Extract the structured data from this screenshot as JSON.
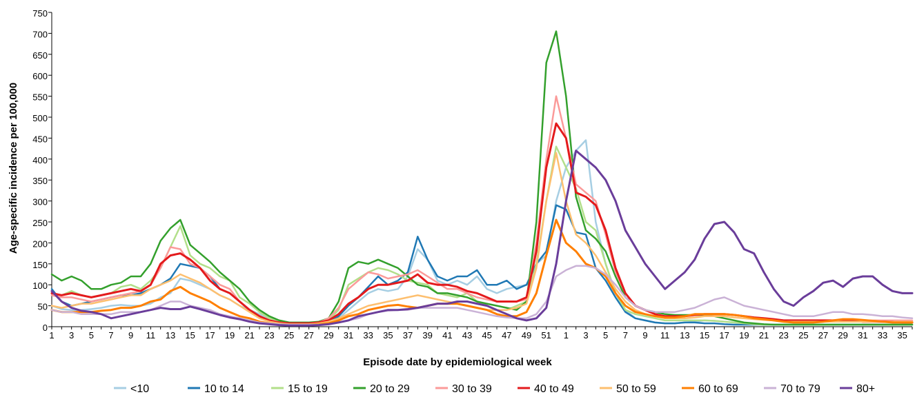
{
  "chart_data": {
    "type": "line",
    "title": "",
    "xlabel": "Episode date by epidemiological week",
    "ylabel": "Age-specific incidence per 100,000",
    "ylim": [
      0,
      750
    ],
    "yticks": [
      0,
      50,
      100,
      150,
      200,
      250,
      300,
      350,
      400,
      450,
      500,
      550,
      600,
      650,
      700,
      750
    ],
    "grid": false,
    "legend": "bottom",
    "x": [
      "1",
      "2",
      "3",
      "4",
      "5",
      "6",
      "7",
      "8",
      "9",
      "10",
      "11",
      "12",
      "13",
      "14",
      "15",
      "16",
      "17",
      "18",
      "19",
      "20",
      "21",
      "22",
      "23",
      "24",
      "25",
      "26",
      "27",
      "28",
      "29",
      "30",
      "31",
      "32",
      "33",
      "34",
      "35",
      "36",
      "37",
      "38",
      "39",
      "40",
      "41",
      "42",
      "43",
      "44",
      "45",
      "46",
      "47",
      "48",
      "49",
      "50",
      "51",
      "52",
      "1",
      "2",
      "3",
      "4",
      "5",
      "6",
      "7",
      "8",
      "9",
      "10",
      "11",
      "12",
      "13",
      "14",
      "15",
      "16",
      "17",
      "18",
      "19",
      "20",
      "21",
      "22",
      "23",
      "24",
      "25",
      "26",
      "27",
      "28",
      "29",
      "30",
      "31",
      "32",
      "33",
      "34",
      "35",
      "36"
    ],
    "xticks": [
      "1",
      "3",
      "5",
      "7",
      "9",
      "11",
      "13",
      "15",
      "17",
      "19",
      "21",
      "23",
      "25",
      "27",
      "29",
      "31",
      "33",
      "35",
      "37",
      "39",
      "41",
      "43",
      "45",
      "47",
      "49",
      "51",
      "1",
      "3",
      "5",
      "7",
      "9",
      "11",
      "13",
      "15",
      "17",
      "19",
      "21",
      "23",
      "25",
      "27",
      "29",
      "31",
      "33",
      "35"
    ],
    "series": [
      {
        "name": "<10",
        "color": "#a6cee3",
        "width": 2.5,
        "values": [
          50,
          42,
          40,
          40,
          42,
          45,
          50,
          52,
          50,
          50,
          55,
          70,
          80,
          115,
          110,
          100,
          90,
          75,
          65,
          50,
          40,
          30,
          20,
          15,
          10,
          8,
          8,
          8,
          10,
          20,
          40,
          60,
          80,
          90,
          85,
          90,
          120,
          185,
          160,
          110,
          100,
          110,
          100,
          120,
          90,
          80,
          90,
          95,
          100,
          150,
          170,
          300,
          380,
          420,
          445,
          250,
          150,
          80,
          40,
          20,
          15,
          10,
          8,
          8,
          10,
          12,
          15,
          14,
          12,
          10,
          8,
          6,
          5,
          5,
          5,
          5,
          5,
          5,
          5,
          5,
          5,
          5,
          5,
          5,
          5,
          5,
          5,
          5
        ]
      },
      {
        "name": "10 to 14",
        "color": "#1f78b4",
        "width": 2.5,
        "values": [
          90,
          60,
          50,
          55,
          60,
          65,
          70,
          75,
          75,
          80,
          90,
          100,
          115,
          150,
          145,
          140,
          120,
          90,
          80,
          60,
          40,
          25,
          15,
          10,
          8,
          8,
          8,
          8,
          10,
          25,
          50,
          70,
          95,
          120,
          100,
          110,
          130,
          215,
          160,
          120,
          110,
          120,
          120,
          135,
          100,
          100,
          110,
          90,
          100,
          150,
          180,
          290,
          280,
          225,
          220,
          140,
          110,
          70,
          35,
          20,
          15,
          10,
          8,
          8,
          10,
          10,
          8,
          8,
          6,
          5,
          5,
          5,
          5,
          5,
          5,
          5,
          5,
          5,
          5,
          5,
          5,
          5,
          5,
          5,
          5,
          5,
          5,
          5
        ]
      },
      {
        "name": "15 to 19",
        "color": "#b2df8a",
        "width": 2.5,
        "values": [
          80,
          75,
          85,
          75,
          70,
          75,
          80,
          95,
          100,
          90,
          110,
          140,
          190,
          240,
          170,
          150,
          140,
          120,
          110,
          70,
          55,
          35,
          20,
          15,
          10,
          8,
          8,
          8,
          15,
          40,
          100,
          115,
          130,
          140,
          135,
          125,
          110,
          105,
          100,
          80,
          75,
          70,
          80,
          60,
          50,
          40,
          40,
          50,
          60,
          150,
          300,
          430,
          380,
          330,
          250,
          230,
          150,
          80,
          40,
          30,
          25,
          20,
          15,
          15,
          15,
          15,
          15,
          14,
          12,
          10,
          8,
          6,
          5,
          5,
          5,
          5,
          5,
          5,
          5,
          5,
          5,
          5,
          5,
          5,
          5,
          5,
          5,
          5
        ]
      },
      {
        "name": "20 to 29",
        "color": "#33a02c",
        "width": 2.5,
        "values": [
          125,
          110,
          120,
          110,
          90,
          90,
          100,
          105,
          120,
          120,
          150,
          205,
          235,
          255,
          195,
          175,
          155,
          130,
          110,
          90,
          60,
          40,
          25,
          15,
          10,
          10,
          10,
          12,
          20,
          60,
          140,
          155,
          150,
          160,
          150,
          140,
          120,
          100,
          95,
          80,
          80,
          75,
          70,
          60,
          55,
          50,
          45,
          40,
          60,
          250,
          630,
          705,
          550,
          310,
          230,
          210,
          180,
          120,
          70,
          50,
          40,
          35,
          30,
          28,
          28,
          28,
          28,
          25,
          20,
          15,
          10,
          8,
          6,
          5,
          5,
          5,
          5,
          5,
          5,
          5,
          5,
          5,
          5,
          5,
          5,
          5,
          5,
          5
        ]
      },
      {
        "name": "30 to 39",
        "color": "#fb9a99",
        "width": 2.5,
        "values": [
          75,
          70,
          70,
          65,
          60,
          65,
          70,
          75,
          80,
          85,
          100,
          140,
          190,
          185,
          150,
          140,
          120,
          100,
          90,
          60,
          40,
          25,
          15,
          10,
          8,
          8,
          8,
          10,
          20,
          45,
          90,
          110,
          130,
          125,
          115,
          120,
          125,
          135,
          120,
          105,
          90,
          90,
          80,
          70,
          65,
          60,
          60,
          60,
          65,
          200,
          400,
          550,
          450,
          340,
          320,
          300,
          220,
          130,
          80,
          50,
          40,
          30,
          25,
          25,
          25,
          28,
          30,
          30,
          30,
          28,
          25,
          22,
          20,
          18,
          15,
          15,
          15,
          15,
          15,
          15,
          15,
          15,
          15,
          15,
          15,
          15,
          15,
          15
        ]
      },
      {
        "name": "40 to 49",
        "color": "#e31a1c",
        "width": 3,
        "values": [
          80,
          75,
          80,
          75,
          70,
          75,
          80,
          85,
          90,
          85,
          100,
          150,
          170,
          175,
          160,
          140,
          110,
          90,
          80,
          60,
          40,
          25,
          15,
          10,
          8,
          8,
          8,
          10,
          15,
          30,
          55,
          70,
          90,
          100,
          100,
          105,
          110,
          125,
          105,
          100,
          100,
          95,
          85,
          80,
          70,
          60,
          60,
          60,
          70,
          180,
          380,
          485,
          450,
          320,
          310,
          290,
          230,
          140,
          80,
          50,
          40,
          30,
          25,
          25,
          25,
          28,
          30,
          30,
          30,
          28,
          25,
          22,
          20,
          18,
          15,
          15,
          15,
          15,
          15,
          15,
          15,
          15,
          12,
          12,
          12,
          12,
          10,
          10
        ]
      },
      {
        "name": "50 to 59",
        "color": "#fdbf6f",
        "width": 2.5,
        "values": [
          50,
          45,
          50,
          55,
          55,
          60,
          65,
          70,
          75,
          75,
          90,
          100,
          110,
          125,
          115,
          105,
          90,
          75,
          65,
          50,
          35,
          20,
          12,
          8,
          6,
          6,
          6,
          8,
          12,
          20,
          30,
          40,
          50,
          55,
          60,
          65,
          70,
          75,
          70,
          65,
          60,
          55,
          50,
          45,
          40,
          40,
          40,
          45,
          55,
          140,
          300,
          415,
          300,
          220,
          200,
          170,
          130,
          90,
          60,
          40,
          30,
          25,
          20,
          20,
          20,
          22,
          25,
          25,
          25,
          22,
          20,
          18,
          16,
          15,
          12,
          12,
          12,
          12,
          12,
          12,
          12,
          12,
          12,
          12,
          12,
          12,
          12,
          12
        ]
      },
      {
        "name": "60 to 69",
        "color": "#ff7f00",
        "width": 3,
        "values": [
          40,
          35,
          35,
          35,
          35,
          38,
          40,
          45,
          45,
          50,
          60,
          65,
          85,
          95,
          80,
          70,
          60,
          45,
          35,
          25,
          20,
          12,
          8,
          6,
          5,
          5,
          5,
          6,
          8,
          15,
          25,
          30,
          40,
          45,
          50,
          52,
          48,
          45,
          50,
          55,
          55,
          55,
          50,
          45,
          40,
          30,
          25,
          25,
          35,
          80,
          170,
          255,
          200,
          180,
          150,
          140,
          120,
          80,
          50,
          35,
          30,
          25,
          22,
          22,
          25,
          30,
          30,
          30,
          30,
          28,
          25,
          20,
          18,
          15,
          12,
          10,
          10,
          10,
          12,
          15,
          18,
          18,
          16,
          14,
          12,
          10,
          10,
          10
        ]
      },
      {
        "name": "70 to 79",
        "color": "#cab2d6",
        "width": 2.5,
        "values": [
          40,
          35,
          35,
          30,
          30,
          30,
          30,
          35,
          35,
          35,
          40,
          50,
          60,
          60,
          50,
          45,
          40,
          30,
          25,
          20,
          15,
          10,
          8,
          6,
          5,
          5,
          5,
          5,
          6,
          10,
          15,
          20,
          30,
          35,
          38,
          40,
          40,
          45,
          45,
          45,
          45,
          45,
          40,
          35,
          30,
          25,
          22,
          20,
          20,
          30,
          60,
          120,
          135,
          145,
          145,
          140,
          125,
          100,
          70,
          50,
          40,
          35,
          35,
          35,
          40,
          45,
          55,
          65,
          70,
          60,
          50,
          45,
          40,
          35,
          30,
          25,
          25,
          25,
          30,
          35,
          35,
          30,
          30,
          28,
          25,
          25,
          22,
          20
        ]
      },
      {
        "name": "80+",
        "color": "#6a3d9a",
        "width": 3,
        "values": [
          85,
          60,
          45,
          38,
          35,
          30,
          20,
          25,
          30,
          35,
          40,
          45,
          42,
          42,
          48,
          42,
          35,
          28,
          22,
          18,
          12,
          8,
          6,
          4,
          3,
          3,
          3,
          4,
          6,
          10,
          15,
          25,
          30,
          35,
          40,
          40,
          42,
          45,
          50,
          55,
          55,
          60,
          60,
          55,
          50,
          40,
          30,
          20,
          15,
          20,
          45,
          150,
          300,
          420,
          400,
          380,
          350,
          300,
          230,
          190,
          150,
          120,
          90,
          110,
          130,
          160,
          210,
          245,
          250,
          225,
          185,
          175,
          130,
          90,
          60,
          50,
          70,
          85,
          105,
          110,
          95,
          115,
          120,
          120,
          100,
          85,
          80,
          80
        ]
      }
    ]
  }
}
